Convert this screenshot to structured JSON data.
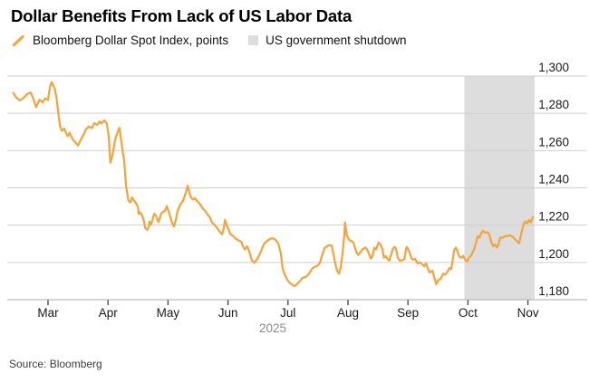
{
  "header": {
    "title": "Dollar Benefits From Lack of US Labor Data"
  },
  "legend": [
    {
      "label": "Bloomberg Dollar Spot Index, points",
      "marker": "orange-slash",
      "color": "#F5A43C"
    },
    {
      "label": "US government shutdown",
      "marker": "gray-square",
      "color": "#DDDDDD"
    }
  ],
  "footer": {
    "source": "Source: Bloomberg"
  },
  "chart_data": {
    "type": "line",
    "title": "Dollar Benefits From Lack of US Labor Data",
    "grid": true,
    "legend_position": "top",
    "x_axis": {
      "unit": "months (2025), t=0 at Mar 1",
      "tick_labels": [
        "Mar",
        "Apr",
        "May",
        "Jun",
        "Jul",
        "Aug",
        "Sep",
        "Oct",
        "Nov"
      ],
      "year_label": "2025",
      "range_months": [
        -0.68,
        8.12
      ]
    },
    "y_axis": {
      "side": "right",
      "range": [
        1180,
        1300
      ],
      "ticks": [
        1300,
        1280,
        1260,
        1240,
        1220,
        1200,
        1180
      ],
      "tick_labels": [
        "1,300",
        "1,280",
        "1,260",
        "1,240",
        "1,220",
        "1,200",
        "1,180"
      ]
    },
    "annotations": [
      {
        "type": "vband",
        "label": "US government shutdown",
        "t_start": 6.94,
        "t_end": 8.11,
        "color": "#DDDDDD"
      }
    ],
    "series": [
      {
        "name": "Bloomberg Dollar Spot Index, points",
        "color": "#F5A43C",
        "points": [
          [
            -0.58,
            1291
          ],
          [
            -0.53,
            1288.5
          ],
          [
            -0.47,
            1287
          ],
          [
            -0.41,
            1288.2
          ],
          [
            -0.35,
            1290.3
          ],
          [
            -0.29,
            1291.2
          ],
          [
            -0.23,
            1286.5
          ],
          [
            -0.2,
            1283.3
          ],
          [
            -0.14,
            1287.3
          ],
          [
            -0.09,
            1285.8
          ],
          [
            -0.05,
            1288
          ],
          [
            0,
            1287.2
          ],
          [
            0.03,
            1294
          ],
          [
            0.06,
            1296.8
          ],
          [
            0.11,
            1293.3
          ],
          [
            0.14,
            1288.5
          ],
          [
            0.17,
            1280.4
          ],
          [
            0.2,
            1273.2
          ],
          [
            0.23,
            1270.6
          ],
          [
            0.27,
            1271.8
          ],
          [
            0.3,
            1269.4
          ],
          [
            0.33,
            1267.8
          ],
          [
            0.36,
            1269.6
          ],
          [
            0.41,
            1266.2
          ],
          [
            0.45,
            1264.6
          ],
          [
            0.5,
            1262.8
          ],
          [
            0.54,
            1265.4
          ],
          [
            0.6,
            1269
          ],
          [
            0.63,
            1271.3
          ],
          [
            0.68,
            1273
          ],
          [
            0.73,
            1272
          ],
          [
            0.77,
            1274.8
          ],
          [
            0.82,
            1273.8
          ],
          [
            0.86,
            1275.6
          ],
          [
            0.89,
            1274.6
          ],
          [
            0.94,
            1276.2
          ],
          [
            0.98,
            1274.5
          ],
          [
            1.01,
            1268
          ],
          [
            1.04,
            1253.5
          ],
          [
            1.07,
            1257
          ],
          [
            1.12,
            1266
          ],
          [
            1.16,
            1270
          ],
          [
            1.19,
            1272.2
          ],
          [
            1.22,
            1265
          ],
          [
            1.27,
            1254
          ],
          [
            1.3,
            1241
          ],
          [
            1.34,
            1233.2
          ],
          [
            1.37,
            1232.2
          ],
          [
            1.4,
            1234.8
          ],
          [
            1.44,
            1233
          ],
          [
            1.47,
            1231.5
          ],
          [
            1.5,
            1229.8
          ],
          [
            1.51,
            1226
          ],
          [
            1.54,
            1226.8
          ],
          [
            1.57,
            1225.2
          ],
          [
            1.6,
            1222
          ],
          [
            1.62,
            1218.6
          ],
          [
            1.65,
            1217.5
          ],
          [
            1.68,
            1219
          ],
          [
            1.69,
            1222
          ],
          [
            1.72,
            1220.5
          ],
          [
            1.77,
            1226.2
          ],
          [
            1.8,
            1225
          ],
          [
            1.84,
            1221.6
          ],
          [
            1.89,
            1226.5
          ],
          [
            1.95,
            1227.7
          ],
          [
            1.98,
            1230.2
          ],
          [
            2.02,
            1226.5
          ],
          [
            2.07,
            1221
          ],
          [
            2.1,
            1219.4
          ],
          [
            2.13,
            1222.8
          ],
          [
            2.16,
            1227.7
          ],
          [
            2.21,
            1231.4
          ],
          [
            2.25,
            1233
          ],
          [
            2.3,
            1237.9
          ],
          [
            2.33,
            1241.1
          ],
          [
            2.36,
            1237
          ],
          [
            2.39,
            1234.6
          ],
          [
            2.42,
            1233.8
          ],
          [
            2.45,
            1234.5
          ],
          [
            2.48,
            1233
          ],
          [
            2.51,
            1232.2
          ],
          [
            2.55,
            1230.5
          ],
          [
            2.58,
            1228.9
          ],
          [
            2.63,
            1227.3
          ],
          [
            2.66,
            1225.7
          ],
          [
            2.7,
            1224.1
          ],
          [
            2.73,
            1221.6
          ],
          [
            2.78,
            1220
          ],
          [
            2.82,
            1218.4
          ],
          [
            2.86,
            1216.7
          ],
          [
            2.9,
            1215.1
          ],
          [
            2.93,
            1218.5
          ],
          [
            2.95,
            1222.8
          ],
          [
            2.98,
            1220
          ],
          [
            3.01,
            1217.6
          ],
          [
            3.04,
            1215.1
          ],
          [
            3.08,
            1214.3
          ],
          [
            3.13,
            1212.7
          ],
          [
            3.17,
            1211.9
          ],
          [
            3.22,
            1211.1
          ],
          [
            3.25,
            1208.6
          ],
          [
            3.28,
            1207
          ],
          [
            3.32,
            1208.6
          ],
          [
            3.35,
            1206.2
          ],
          [
            3.4,
            1201
          ],
          [
            3.44,
            1199.8
          ],
          [
            3.49,
            1202
          ],
          [
            3.55,
            1206
          ],
          [
            3.6,
            1210
          ],
          [
            3.64,
            1211.3
          ],
          [
            3.69,
            1212.4
          ],
          [
            3.73,
            1213
          ],
          [
            3.78,
            1212.5
          ],
          [
            3.81,
            1211.5
          ],
          [
            3.84,
            1210
          ],
          [
            3.88,
            1205
          ],
          [
            3.91,
            1197
          ],
          [
            3.94,
            1194
          ],
          [
            3.99,
            1190.7
          ],
          [
            4.03,
            1189
          ],
          [
            4.06,
            1188.3
          ],
          [
            4.11,
            1187.3
          ],
          [
            4.15,
            1188.3
          ],
          [
            4.2,
            1190
          ],
          [
            4.24,
            1191.7
          ],
          [
            4.3,
            1192.2
          ],
          [
            4.35,
            1194
          ],
          [
            4.4,
            1196.6
          ],
          [
            4.44,
            1197.5
          ],
          [
            4.49,
            1198.2
          ],
          [
            4.53,
            1199.6
          ],
          [
            4.56,
            1203
          ],
          [
            4.61,
            1207.8
          ],
          [
            4.65,
            1208.5
          ],
          [
            4.68,
            1209.3
          ],
          [
            4.73,
            1209
          ],
          [
            4.76,
            1204
          ],
          [
            4.79,
            1199
          ],
          [
            4.82,
            1195.5
          ],
          [
            4.85,
            1194
          ],
          [
            4.88,
            1197.5
          ],
          [
            4.91,
            1205
          ],
          [
            4.94,
            1215
          ],
          [
            4.95,
            1221.5
          ],
          [
            4.98,
            1214.6
          ],
          [
            5.02,
            1212
          ],
          [
            5.06,
            1211.5
          ],
          [
            5.09,
            1210.7
          ],
          [
            5.14,
            1205.4
          ],
          [
            5.17,
            1204
          ],
          [
            5.21,
            1205.5
          ],
          [
            5.24,
            1207
          ],
          [
            5.29,
            1208
          ],
          [
            5.32,
            1207
          ],
          [
            5.35,
            1204.6
          ],
          [
            5.38,
            1202
          ],
          [
            5.41,
            1203.5
          ],
          [
            5.44,
            1208
          ],
          [
            5.47,
            1207
          ],
          [
            5.51,
            1210.7
          ],
          [
            5.54,
            1209.9
          ],
          [
            5.57,
            1207.5
          ],
          [
            5.6,
            1202.6
          ],
          [
            5.63,
            1203.4
          ],
          [
            5.66,
            1201.8
          ],
          [
            5.69,
            1201
          ],
          [
            5.74,
            1206.6
          ],
          [
            5.77,
            1208.3
          ],
          [
            5.8,
            1207.5
          ],
          [
            5.83,
            1202.6
          ],
          [
            5.86,
            1201
          ],
          [
            5.91,
            1201.2
          ],
          [
            5.94,
            1201.8
          ],
          [
            5.97,
            1207.5
          ],
          [
            5.98,
            1208.3
          ],
          [
            6.01,
            1206.8
          ],
          [
            6.06,
            1202
          ],
          [
            6.09,
            1201.5
          ],
          [
            6.12,
            1202
          ],
          [
            6.16,
            1199.5
          ],
          [
            6.19,
            1200
          ],
          [
            6.24,
            1199
          ],
          [
            6.27,
            1198
          ],
          [
            6.3,
            1199.5
          ],
          [
            6.33,
            1197
          ],
          [
            6.36,
            1194.6
          ],
          [
            6.41,
            1195.6
          ],
          [
            6.43,
            1193
          ],
          [
            6.47,
            1188.3
          ],
          [
            6.51,
            1190.7
          ],
          [
            6.54,
            1191
          ],
          [
            6.59,
            1194
          ],
          [
            6.62,
            1193.5
          ],
          [
            6.65,
            1194.6
          ],
          [
            6.69,
            1197
          ],
          [
            6.72,
            1196.4
          ],
          [
            6.74,
            1200
          ],
          [
            6.77,
            1206.8
          ],
          [
            6.8,
            1208
          ],
          [
            6.83,
            1205.4
          ],
          [
            6.86,
            1203
          ],
          [
            6.89,
            1202.6
          ],
          [
            6.92,
            1203.5
          ],
          [
            6.96,
            1201
          ],
          [
            6.99,
            1200.6
          ],
          [
            7.02,
            1202.7
          ],
          [
            7.05,
            1203.5
          ],
          [
            7.1,
            1206.8
          ],
          [
            7.13,
            1210
          ],
          [
            7.16,
            1214
          ],
          [
            7.19,
            1213.2
          ],
          [
            7.22,
            1215.6
          ],
          [
            7.25,
            1217
          ],
          [
            7.28,
            1216
          ],
          [
            7.33,
            1216.2
          ],
          [
            7.36,
            1214.6
          ],
          [
            7.39,
            1211
          ],
          [
            7.42,
            1208.8
          ],
          [
            7.45,
            1209.6
          ],
          [
            7.48,
            1208
          ],
          [
            7.51,
            1210
          ],
          [
            7.54,
            1213.4
          ],
          [
            7.58,
            1213.2
          ],
          [
            7.61,
            1214
          ],
          [
            7.66,
            1214.2
          ],
          [
            7.7,
            1214.6
          ],
          [
            7.73,
            1214
          ],
          [
            7.76,
            1213.4
          ],
          [
            7.79,
            1212.2
          ],
          [
            7.82,
            1211.4
          ],
          [
            7.85,
            1210.2
          ],
          [
            7.87,
            1212.5
          ],
          [
            7.9,
            1217
          ],
          [
            7.93,
            1220.8
          ],
          [
            7.96,
            1222
          ],
          [
            7.99,
            1221
          ],
          [
            8.02,
            1222.8
          ],
          [
            8.05,
            1221.5
          ],
          [
            8.08,
            1224.3
          ]
        ]
      }
    ]
  },
  "style": {
    "line_color": "#F5A43C",
    "band_color": "#DDDDDD",
    "grid_color": "#CFCFCF",
    "axis_line_color": "#ABABAB",
    "tick_color": "#4A4A4A",
    "axis_text_color": "#1A1A1A",
    "year_text_color": "#8A8A8A"
  }
}
